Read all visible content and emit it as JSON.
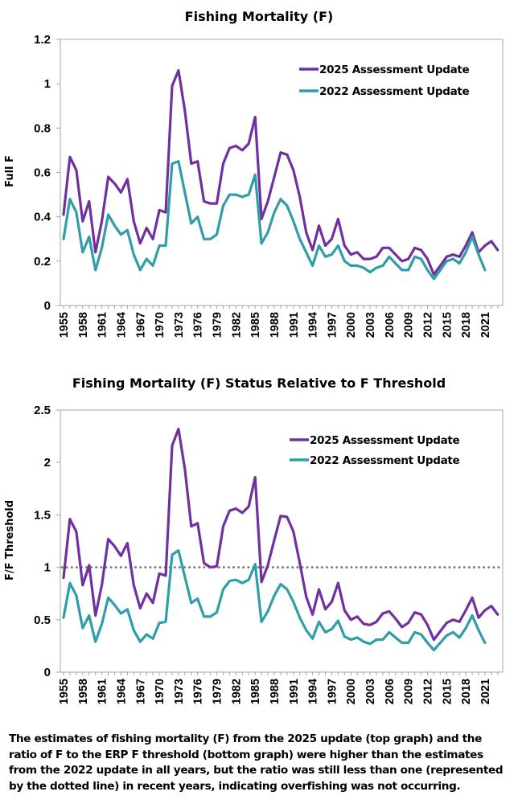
{
  "chart_data": [
    {
      "type": "line",
      "title": "Fishing Mortality (F)",
      "xlabel": "",
      "ylabel": "Full F",
      "ylim": [
        0,
        1.2
      ],
      "yticks": [
        0,
        0.2,
        0.4,
        0.6,
        0.8,
        1,
        1.2
      ],
      "ytick_labels": [
        "0",
        "0.2",
        "0.4",
        "0.6",
        "0.8",
        "1",
        "1.2"
      ],
      "x_start": 1955,
      "x_end": 2023,
      "xtick_labels": [
        "1955",
        "1958",
        "1961",
        "1964",
        "1967",
        "1970",
        "1973",
        "1976",
        "1979",
        "1982",
        "1985",
        "1988",
        "1991",
        "1994",
        "1997",
        "2000",
        "2003",
        "2006",
        "2009",
        "2012",
        "2015",
        "2018",
        "2021"
      ],
      "grid": false,
      "legend_position": "top-right",
      "series": [
        {
          "name": "2025 Assessment Update",
          "color": "#7030A0",
          "x_start": 1955,
          "values": [
            0.41,
            0.67,
            0.61,
            0.38,
            0.47,
            0.24,
            0.38,
            0.58,
            0.55,
            0.51,
            0.57,
            0.38,
            0.28,
            0.35,
            0.3,
            0.43,
            0.42,
            0.99,
            1.06,
            0.88,
            0.64,
            0.65,
            0.47,
            0.46,
            0.46,
            0.64,
            0.71,
            0.72,
            0.7,
            0.73,
            0.85,
            0.39,
            0.47,
            0.58,
            0.69,
            0.68,
            0.61,
            0.49,
            0.33,
            0.25,
            0.36,
            0.27,
            0.3,
            0.39,
            0.27,
            0.23,
            0.24,
            0.21,
            0.21,
            0.22,
            0.26,
            0.26,
            0.23,
            0.2,
            0.21,
            0.26,
            0.25,
            0.21,
            0.14,
            0.18,
            0.22,
            0.23,
            0.22,
            0.27,
            0.33,
            0.24,
            0.27,
            0.29,
            0.25
          ]
        },
        {
          "name": "2022 Assessment Update",
          "color": "#2E9EA8",
          "x_start": 1955,
          "values": [
            0.3,
            0.48,
            0.42,
            0.24,
            0.31,
            0.16,
            0.26,
            0.41,
            0.36,
            0.32,
            0.34,
            0.23,
            0.16,
            0.21,
            0.18,
            0.27,
            0.27,
            0.64,
            0.65,
            0.51,
            0.37,
            0.4,
            0.3,
            0.3,
            0.32,
            0.45,
            0.5,
            0.5,
            0.49,
            0.5,
            0.59,
            0.28,
            0.33,
            0.42,
            0.48,
            0.45,
            0.38,
            0.3,
            0.24,
            0.18,
            0.27,
            0.22,
            0.23,
            0.27,
            0.2,
            0.18,
            0.18,
            0.17,
            0.15,
            0.17,
            0.18,
            0.22,
            0.19,
            0.16,
            0.16,
            0.22,
            0.21,
            0.16,
            0.12,
            0.16,
            0.2,
            0.21,
            0.19,
            0.24,
            0.31,
            0.23,
            0.16
          ]
        }
      ]
    },
    {
      "type": "line",
      "title": "Fishing Mortality (F) Status Relative to F Threshold",
      "xlabel": "",
      "ylabel": "F/F Threshold",
      "ylim": [
        0,
        2.5
      ],
      "yticks": [
        0,
        0.5,
        1,
        1.5,
        2,
        2.5
      ],
      "ytick_labels": [
        "0",
        "0.5",
        "1",
        "1.5",
        "2",
        "2.5"
      ],
      "x_start": 1955,
      "x_end": 2023,
      "xtick_labels": [
        "1955",
        "1958",
        "1961",
        "1964",
        "1967",
        "1970",
        "1973",
        "1976",
        "1979",
        "1982",
        "1985",
        "1988",
        "1991",
        "1994",
        "1997",
        "2000",
        "2003",
        "2006",
        "2009",
        "2012",
        "2015",
        "2018",
        "2021"
      ],
      "grid": false,
      "legend_position": "top-right",
      "reference_line": {
        "y": 1,
        "style": "dotted",
        "color": "#808080"
      },
      "series": [
        {
          "name": "2025 Assessment Update",
          "color": "#7030A0",
          "x_start": 1955,
          "values": [
            0.9,
            1.46,
            1.34,
            0.83,
            1.02,
            0.54,
            0.83,
            1.27,
            1.2,
            1.11,
            1.23,
            0.83,
            0.61,
            0.75,
            0.66,
            0.94,
            0.92,
            2.16,
            2.32,
            1.94,
            1.39,
            1.42,
            1.04,
            1.0,
            1.01,
            1.39,
            1.54,
            1.56,
            1.52,
            1.58,
            1.86,
            0.86,
            1.02,
            1.26,
            1.49,
            1.48,
            1.34,
            1.04,
            0.72,
            0.55,
            0.79,
            0.6,
            0.67,
            0.85,
            0.59,
            0.5,
            0.53,
            0.46,
            0.45,
            0.48,
            0.56,
            0.58,
            0.51,
            0.43,
            0.47,
            0.57,
            0.55,
            0.45,
            0.31,
            0.39,
            0.47,
            0.5,
            0.48,
            0.59,
            0.71,
            0.52,
            0.59,
            0.63,
            0.55
          ]
        },
        {
          "name": "2022 Assessment Update",
          "color": "#2E9EA8",
          "x_start": 1955,
          "values": [
            0.52,
            0.85,
            0.73,
            0.42,
            0.54,
            0.29,
            0.46,
            0.71,
            0.64,
            0.56,
            0.6,
            0.4,
            0.29,
            0.36,
            0.32,
            0.47,
            0.48,
            1.12,
            1.16,
            0.91,
            0.66,
            0.7,
            0.53,
            0.53,
            0.57,
            0.79,
            0.87,
            0.88,
            0.85,
            0.88,
            1.03,
            0.48,
            0.58,
            0.73,
            0.84,
            0.79,
            0.67,
            0.52,
            0.4,
            0.32,
            0.48,
            0.38,
            0.41,
            0.49,
            0.34,
            0.31,
            0.33,
            0.29,
            0.27,
            0.31,
            0.31,
            0.38,
            0.33,
            0.28,
            0.28,
            0.38,
            0.36,
            0.28,
            0.21,
            0.28,
            0.35,
            0.38,
            0.33,
            0.42,
            0.54,
            0.4,
            0.28
          ]
        }
      ]
    }
  ],
  "caption": "The estimates of fishing mortality (F) from the 2025 update (top graph) and the ratio of F to the ERP F threshold (bottom graph) were higher than the estimates from the 2022 update in all years, but the ratio was still less than one (represented by the dotted line) in recent years, indicating overfishing was not occurring."
}
